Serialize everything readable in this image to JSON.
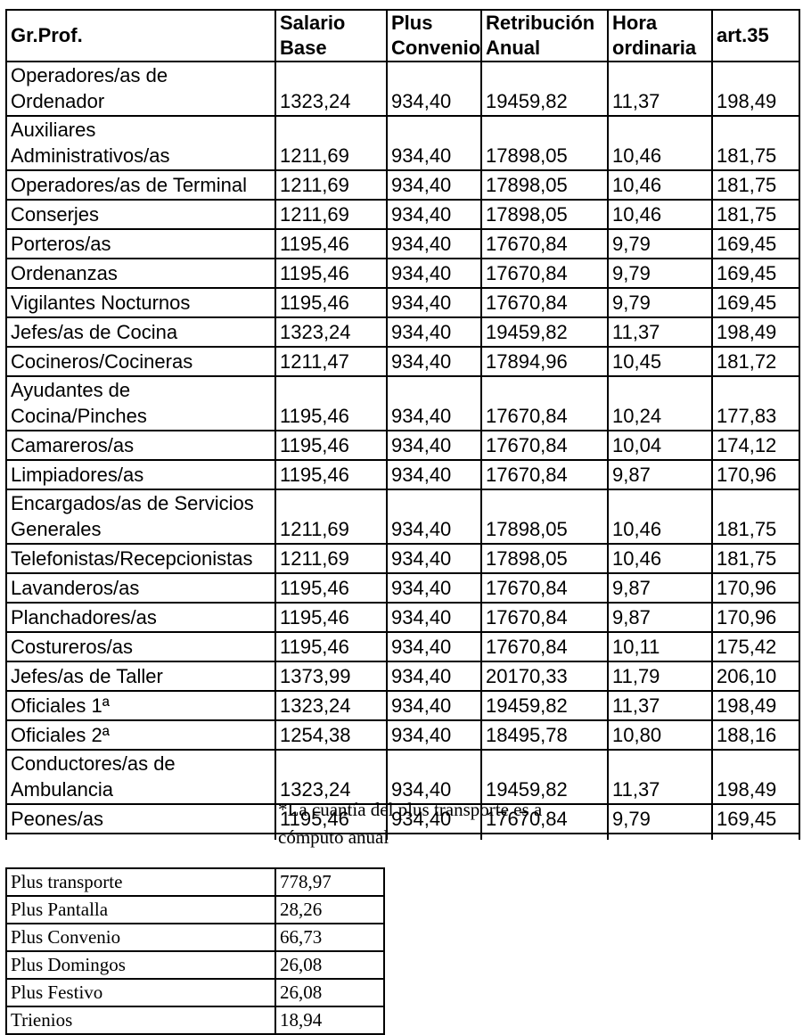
{
  "salary_table": {
    "headers": [
      "Gr.Prof.",
      "Salario\nBase",
      "Plus\nConvenio",
      "Retribución\nAnual",
      "Hora\nordinaria",
      "art.35"
    ],
    "rows": [
      [
        "Operadores/as de\nOrdenador",
        "1323,24",
        "934,40",
        "19459,82",
        "11,37",
        "198,49"
      ],
      [
        "Auxiliares\nAdministrativos/as",
        "1211,69",
        "934,40",
        "17898,05",
        "10,46",
        "181,75"
      ],
      [
        "Operadores/as de Terminal",
        "1211,69",
        "934,40",
        "17898,05",
        "10,46",
        "181,75"
      ],
      [
        "Conserjes",
        "1211,69",
        "934,40",
        "17898,05",
        "10,46",
        "181,75"
      ],
      [
        "Porteros/as",
        "1195,46",
        "934,40",
        "17670,84",
        "9,79",
        "169,45"
      ],
      [
        "Ordenanzas",
        "1195,46",
        "934,40",
        "17670,84",
        "9,79",
        "169,45"
      ],
      [
        "Vigilantes Nocturnos",
        "1195,46",
        "934,40",
        "17670,84",
        "9,79",
        "169,45"
      ],
      [
        "Jefes/as de Cocina",
        "1323,24",
        "934,40",
        "19459,82",
        "11,37",
        "198,49"
      ],
      [
        "Cocineros/Cocineras",
        "1211,47",
        "934,40",
        "17894,96",
        "10,45",
        "181,72"
      ],
      [
        "Ayudantes de\nCocina/Pinches",
        "1195,46",
        "934,40",
        "17670,84",
        "10,24",
        "177,83"
      ],
      [
        "Camareros/as",
        "1195,46",
        "934,40",
        "17670,84",
        "10,04",
        "174,12"
      ],
      [
        "Limpiadores/as",
        "1195,46",
        "934,40",
        "17670,84",
        "9,87",
        "170,96"
      ],
      [
        "Encargados/as de Servicios\nGenerales",
        "1211,69",
        "934,40",
        "17898,05",
        "10,46",
        "181,75"
      ],
      [
        "Telefonistas/Recepcionistas",
        "1211,69",
        "934,40",
        "17898,05",
        "10,46",
        "181,75"
      ],
      [
        "Lavanderos/as",
        "1195,46",
        "934,40",
        "17670,84",
        "9,87",
        "170,96"
      ],
      [
        "Planchadores/as",
        "1195,46",
        "934,40",
        "17670,84",
        "9,87",
        "170,96"
      ],
      [
        "Costureros/as",
        "1195,46",
        "934,40",
        "17670,84",
        "10,11",
        "175,42"
      ],
      [
        "Jefes/as de Taller",
        "1373,99",
        "934,40",
        "20170,33",
        "11,79",
        "206,10"
      ],
      [
        "Oficiales 1ª",
        "1323,24",
        "934,40",
        "19459,82",
        "11,37",
        "198,49"
      ],
      [
        "Oficiales 2ª",
        "1254,38",
        "934,40",
        "18495,78",
        "10,80",
        "188,16"
      ],
      [
        "Conductores/as de\nAmbulancia",
        "1323,24",
        "934,40",
        "19459,82",
        "11,37",
        "198,49"
      ],
      [
        "Peones/as",
        "1195,46",
        "934,40",
        "17670,84",
        "9,79",
        "169,45"
      ]
    ]
  },
  "footnote": {
    "text": "*La cuantía del plus transporte es a\ncómputo anual"
  },
  "plus_table": {
    "rows": [
      [
        "Plus transporte",
        "778,97"
      ],
      [
        "Plus Pantalla",
        "28,26"
      ],
      [
        "Plus Convenio",
        "66,73"
      ],
      [
        "Plus Domingos",
        "26,08"
      ],
      [
        "Plus Festivo",
        "26,08"
      ],
      [
        "Trienios",
        "18,94"
      ]
    ]
  }
}
